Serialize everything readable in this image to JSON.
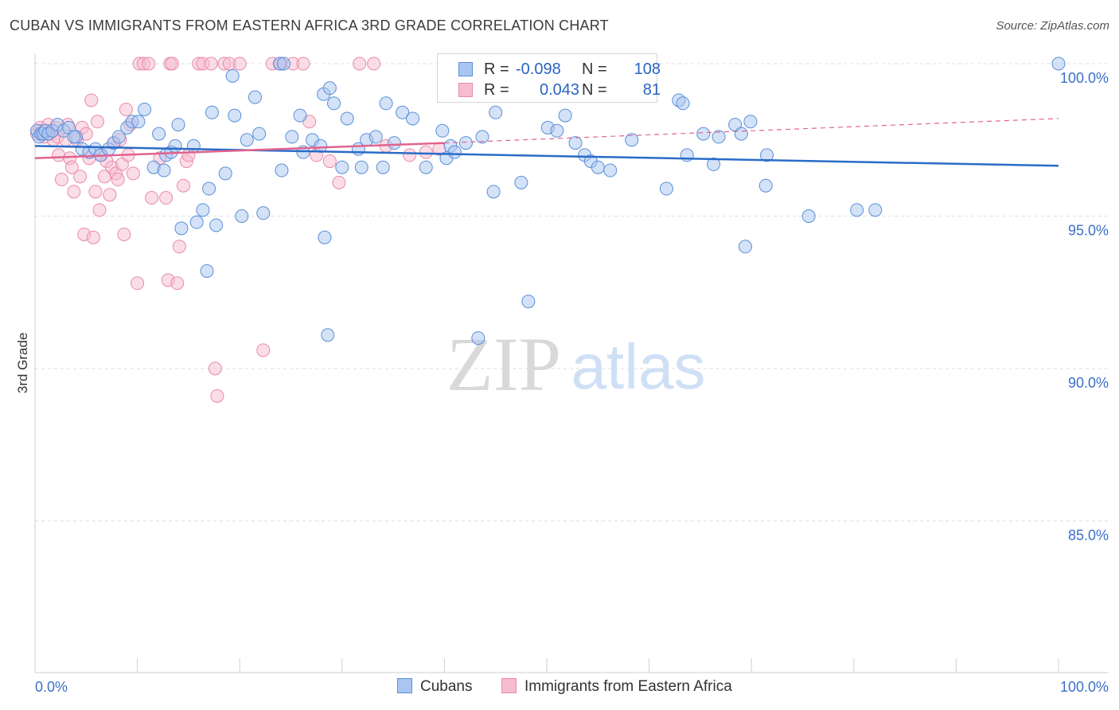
{
  "title": "CUBAN VS IMMIGRANTS FROM EASTERN AFRICA 3RD GRADE CORRELATION CHART",
  "source": "Source: ZipAtlas.com",
  "watermark": {
    "zip": "ZIP",
    "atlas": "atlas"
  },
  "colors": {
    "blue_fill": "#a9c6f0",
    "blue_stroke": "#5a8fd8",
    "blue_line": "#2a6cc7",
    "pink_fill": "#f6bcd0",
    "pink_stroke": "#e98aab",
    "pink_line": "#e0638f",
    "grid": "#dedede",
    "axis_text": "#3b6fc9"
  },
  "legend": {
    "rows": [
      {
        "label": "R =",
        "r": "-0.098",
        "n_label": "N =",
        "n": "108"
      },
      {
        "label": "R =",
        "r": "0.043",
        "n_label": "N =",
        "n": "81"
      }
    ]
  },
  "bottom_legend": {
    "cubans": "Cubans",
    "eastern_africa": "Immigrants from Eastern Africa"
  },
  "chart_data": {
    "type": "scatter",
    "xlabel": "",
    "ylabel": "3rd Grade",
    "xlim": [
      0,
      100
    ],
    "ylim": [
      80.5,
      100.8
    ],
    "x_tick_labels": [
      "0.0%",
      "100.0%"
    ],
    "y_ticks": [
      {
        "value": 100,
        "label": "100.0%"
      },
      {
        "value": 95,
        "label": "95.0%"
      },
      {
        "value": 90,
        "label": "90.0%"
      },
      {
        "value": 85,
        "label": "85.0%"
      }
    ],
    "series": [
      {
        "name": "Cubans",
        "r": -0.098,
        "n": 108,
        "trend": {
          "x": [
            0,
            100
          ],
          "y": [
            97.3,
            96.65
          ]
        },
        "points": [
          [
            0.2,
            97.8
          ],
          [
            0.4,
            97.6
          ],
          [
            0.6,
            97.7
          ],
          [
            0.8,
            97.7
          ],
          [
            1.0,
            97.8
          ],
          [
            1.3,
            97.7
          ],
          [
            1.7,
            97.8
          ],
          [
            2.2,
            98.0
          ],
          [
            2.8,
            97.8
          ],
          [
            3.3,
            97.9
          ],
          [
            4.0,
            97.6
          ],
          [
            4.6,
            97.2
          ],
          [
            5.3,
            97.1
          ],
          [
            5.9,
            97.2
          ],
          [
            6.4,
            97.0
          ],
          [
            7.2,
            97.2
          ],
          [
            7.7,
            97.4
          ],
          [
            8.2,
            97.6
          ],
          [
            9.0,
            97.9
          ],
          [
            9.5,
            98.1
          ],
          [
            10.1,
            98.1
          ],
          [
            10.7,
            98.5
          ],
          [
            11.6,
            96.6
          ],
          [
            12.1,
            97.7
          ],
          [
            12.6,
            96.5
          ],
          [
            12.8,
            97.0
          ],
          [
            13.3,
            97.1
          ],
          [
            13.7,
            97.3
          ],
          [
            14.0,
            98.0
          ],
          [
            14.3,
            94.6
          ],
          [
            15.5,
            97.3
          ],
          [
            15.8,
            94.8
          ],
          [
            16.4,
            95.2
          ],
          [
            16.8,
            93.2
          ],
          [
            17.0,
            95.9
          ],
          [
            17.3,
            98.4
          ],
          [
            17.7,
            94.7
          ],
          [
            18.6,
            96.4
          ],
          [
            19.3,
            99.6
          ],
          [
            19.5,
            98.3
          ],
          [
            20.2,
            95.0
          ],
          [
            20.7,
            97.5
          ],
          [
            21.5,
            98.9
          ],
          [
            21.9,
            97.7
          ],
          [
            22.3,
            95.1
          ],
          [
            23.9,
            100.0
          ],
          [
            24.1,
            96.5
          ],
          [
            24.3,
            100.0
          ],
          [
            25.1,
            97.6
          ],
          [
            25.9,
            98.3
          ],
          [
            26.2,
            97.1
          ],
          [
            27.1,
            97.5
          ],
          [
            27.9,
            97.3
          ],
          [
            28.2,
            99.0
          ],
          [
            28.3,
            94.3
          ],
          [
            28.6,
            91.1
          ],
          [
            28.8,
            99.2
          ],
          [
            29.2,
            98.7
          ],
          [
            30.0,
            96.6
          ],
          [
            30.5,
            98.2
          ],
          [
            31.6,
            97.2
          ],
          [
            31.9,
            96.6
          ],
          [
            32.4,
            97.5
          ],
          [
            33.3,
            97.6
          ],
          [
            34.0,
            96.6
          ],
          [
            34.3,
            98.7
          ],
          [
            35.1,
            97.4
          ],
          [
            35.9,
            98.4
          ],
          [
            36.9,
            98.2
          ],
          [
            38.2,
            96.6
          ],
          [
            39.8,
            97.8
          ],
          [
            40.2,
            96.9
          ],
          [
            40.6,
            97.3
          ],
          [
            41.0,
            97.1
          ],
          [
            42.1,
            97.4
          ],
          [
            43.3,
            91.0
          ],
          [
            43.7,
            97.6
          ],
          [
            44.8,
            95.8
          ],
          [
            45.0,
            98.4
          ],
          [
            47.5,
            96.1
          ],
          [
            48.2,
            92.2
          ],
          [
            50.1,
            97.9
          ],
          [
            51.0,
            97.8
          ],
          [
            51.8,
            98.3
          ],
          [
            52.8,
            97.4
          ],
          [
            53.7,
            97.0
          ],
          [
            54.3,
            96.8
          ],
          [
            55.0,
            96.6
          ],
          [
            56.2,
            96.5
          ],
          [
            58.3,
            97.5
          ],
          [
            61.7,
            95.9
          ],
          [
            62.9,
            98.8
          ],
          [
            63.3,
            98.7
          ],
          [
            63.7,
            97.0
          ],
          [
            65.3,
            97.7
          ],
          [
            66.3,
            96.7
          ],
          [
            66.8,
            97.6
          ],
          [
            68.4,
            98.0
          ],
          [
            69.0,
            97.7
          ],
          [
            69.4,
            94.0
          ],
          [
            69.9,
            98.1
          ],
          [
            71.4,
            96.0
          ],
          [
            71.5,
            97.0
          ],
          [
            75.6,
            95.0
          ],
          [
            80.3,
            95.2
          ],
          [
            82.1,
            95.2
          ],
          [
            100.0,
            100.0
          ],
          [
            3.8,
            97.6
          ]
        ]
      },
      {
        "name": "Immigrants from Eastern Africa",
        "r": 0.043,
        "n": 81,
        "trend": {
          "x": [
            0,
            40
          ],
          "y": [
            96.9,
            97.4
          ]
        },
        "trend_dashed": {
          "x": [
            40,
            100
          ],
          "y": [
            97.4,
            98.2
          ]
        },
        "points": [
          [
            0.2,
            97.7
          ],
          [
            0.5,
            97.9
          ],
          [
            0.7,
            97.8
          ],
          [
            0.9,
            97.6
          ],
          [
            1.1,
            97.8
          ],
          [
            1.3,
            98.0
          ],
          [
            1.5,
            97.7
          ],
          [
            1.8,
            97.5
          ],
          [
            2.0,
            97.9
          ],
          [
            2.2,
            97.6
          ],
          [
            2.3,
            97.0
          ],
          [
            2.6,
            96.2
          ],
          [
            3.0,
            97.5
          ],
          [
            3.2,
            98.0
          ],
          [
            3.4,
            96.9
          ],
          [
            3.6,
            96.6
          ],
          [
            3.8,
            95.8
          ],
          [
            4.1,
            97.5
          ],
          [
            4.4,
            96.3
          ],
          [
            4.6,
            97.9
          ],
          [
            4.8,
            94.4
          ],
          [
            5.0,
            97.7
          ],
          [
            5.3,
            96.9
          ],
          [
            5.5,
            98.8
          ],
          [
            5.7,
            94.3
          ],
          [
            5.9,
            95.8
          ],
          [
            6.1,
            98.1
          ],
          [
            6.3,
            95.2
          ],
          [
            6.5,
            97.0
          ],
          [
            6.8,
            96.3
          ],
          [
            7.0,
            96.8
          ],
          [
            7.3,
            95.7
          ],
          [
            7.5,
            96.6
          ],
          [
            7.7,
            97.4
          ],
          [
            7.9,
            96.4
          ],
          [
            8.1,
            96.2
          ],
          [
            8.3,
            97.5
          ],
          [
            8.5,
            96.7
          ],
          [
            8.7,
            94.4
          ],
          [
            8.9,
            98.5
          ],
          [
            9.1,
            97.0
          ],
          [
            9.3,
            98.0
          ],
          [
            9.6,
            96.4
          ],
          [
            10.0,
            92.8
          ],
          [
            10.2,
            100.0
          ],
          [
            10.6,
            100.0
          ],
          [
            11.1,
            100.0
          ],
          [
            11.4,
            95.6
          ],
          [
            12.2,
            96.9
          ],
          [
            12.8,
            95.6
          ],
          [
            13.0,
            92.9
          ],
          [
            13.2,
            100.0
          ],
          [
            13.4,
            100.0
          ],
          [
            13.9,
            92.8
          ],
          [
            14.1,
            94.0
          ],
          [
            14.5,
            96.0
          ],
          [
            14.8,
            96.8
          ],
          [
            15.0,
            97.0
          ],
          [
            16.0,
            100.0
          ],
          [
            16.4,
            100.0
          ],
          [
            17.2,
            100.0
          ],
          [
            17.6,
            90.0
          ],
          [
            17.8,
            89.1
          ],
          [
            18.5,
            100.0
          ],
          [
            19.0,
            100.0
          ],
          [
            20.0,
            100.0
          ],
          [
            22.3,
            90.6
          ],
          [
            23.2,
            100.0
          ],
          [
            24.0,
            100.0
          ],
          [
            25.2,
            100.0
          ],
          [
            26.2,
            100.0
          ],
          [
            26.8,
            98.1
          ],
          [
            27.5,
            97.0
          ],
          [
            28.8,
            96.8
          ],
          [
            29.7,
            96.1
          ],
          [
            31.7,
            100.0
          ],
          [
            33.1,
            100.0
          ],
          [
            34.3,
            97.3
          ],
          [
            36.6,
            97.0
          ],
          [
            38.2,
            97.1
          ],
          [
            39.5,
            97.2
          ]
        ]
      }
    ]
  }
}
